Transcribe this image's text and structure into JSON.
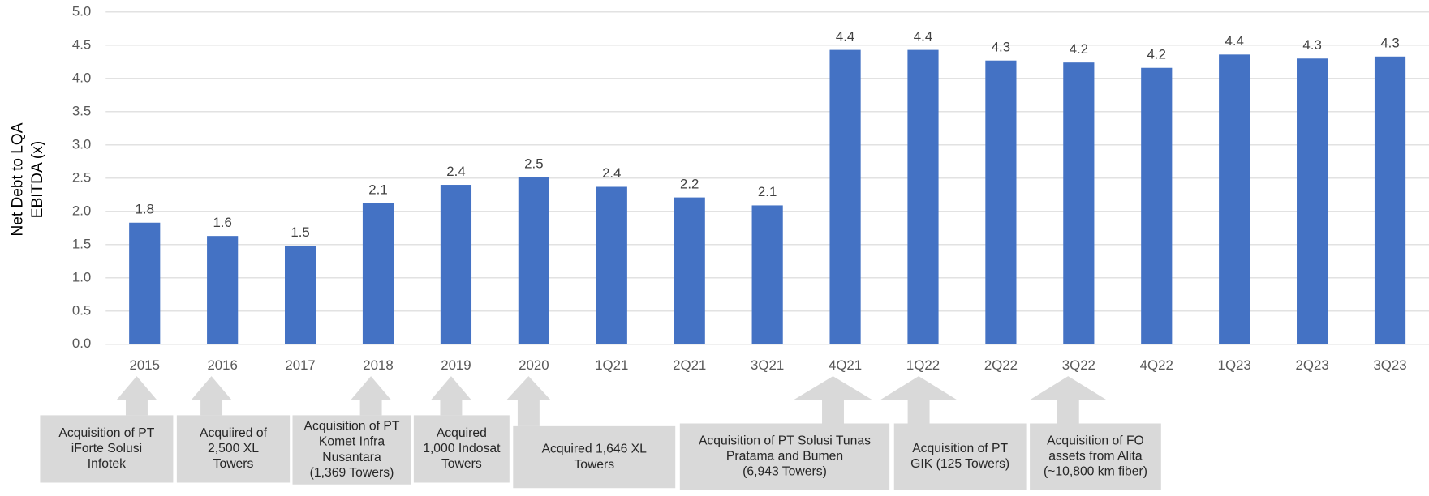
{
  "chart_data": {
    "type": "bar",
    "y_label": [
      "Net Debt to LQA",
      "EBITDA (x)"
    ],
    "categories": [
      "2015",
      "2016",
      "2017",
      "2018",
      "2019",
      "2020",
      "1Q21",
      "2Q21",
      "3Q21",
      "4Q21",
      "1Q22",
      "2Q22",
      "3Q22",
      "4Q22",
      "1Q23",
      "2Q23",
      "3Q23"
    ],
    "values": [
      1.83,
      1.63,
      1.48,
      2.12,
      2.4,
      2.51,
      2.37,
      2.21,
      2.09,
      4.43,
      4.43,
      4.27,
      4.24,
      4.16,
      4.36,
      4.3,
      4.33
    ],
    "value_labels": [
      "1.8",
      "1.6",
      "1.5",
      "2.1",
      "2.4",
      "2.5",
      "2.4",
      "2.2",
      "2.1",
      "4.4",
      "4.4",
      "4.3",
      "4.2",
      "4.2",
      "4.4",
      "4.3",
      "4.3"
    ],
    "color": "#4472c4",
    "ylim": [
      0,
      5
    ],
    "yticks": [
      {
        "value": 0,
        "label": "0.0"
      },
      {
        "value": 0.5,
        "label": "0.5"
      },
      {
        "value": 1,
        "label": "1.0"
      },
      {
        "value": 1.5,
        "label": "1.5"
      },
      {
        "value": 2,
        "label": "2.0"
      },
      {
        "value": 2.5,
        "label": "2.5"
      },
      {
        "value": 3,
        "label": "3.0"
      },
      {
        "value": 3.5,
        "label": "3.5"
      },
      {
        "value": 4,
        "label": "4.0"
      },
      {
        "value": 4.5,
        "label": "4.5"
      },
      {
        "value": 5,
        "label": "5.0"
      }
    ],
    "grid": true,
    "annotations": [
      {
        "lines": [
          "Acquisition of PT",
          "iForte Solusi",
          "Infotek"
        ]
      },
      {
        "lines": [
          "Acquiired of",
          "2,500 XL",
          "Towers"
        ]
      },
      {
        "lines": [
          "Acquisition of PT",
          "Komet Infra",
          "Nusantara",
          "(1,369 Towers)"
        ]
      },
      {
        "lines": [
          "Acquired",
          "1,000 Indosat",
          "Towers"
        ]
      },
      {
        "lines": [
          "Acquired 1,646 XL",
          "Towers"
        ]
      },
      {
        "lines": [
          "Acquisition of PT Solusi Tunas",
          "Pratama and Bumen",
          "(6,943 Towers)"
        ]
      },
      {
        "lines": [
          "Acquisition of PT",
          "GIK (125 Towers)"
        ]
      },
      {
        "lines": [
          "Acquisition of FO",
          "assets from Alita",
          "(~10,800 km fiber)"
        ]
      }
    ]
  }
}
